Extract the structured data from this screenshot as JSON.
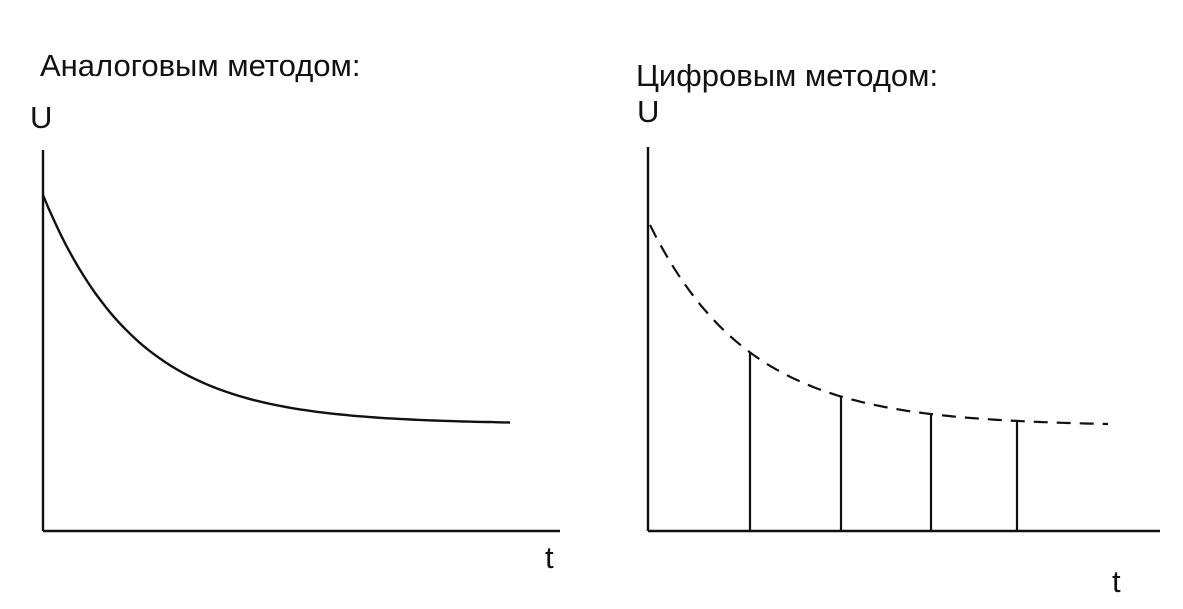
{
  "panels": [
    {
      "title": "Аналоговым методом:",
      "y_axis_label": "U",
      "x_axis_label": "t",
      "curve_style": "solid"
    },
    {
      "title": "Цифровым методом:",
      "y_axis_label": "U",
      "x_axis_label": "t",
      "curve_style": "dashed",
      "samples": 4
    }
  ]
}
